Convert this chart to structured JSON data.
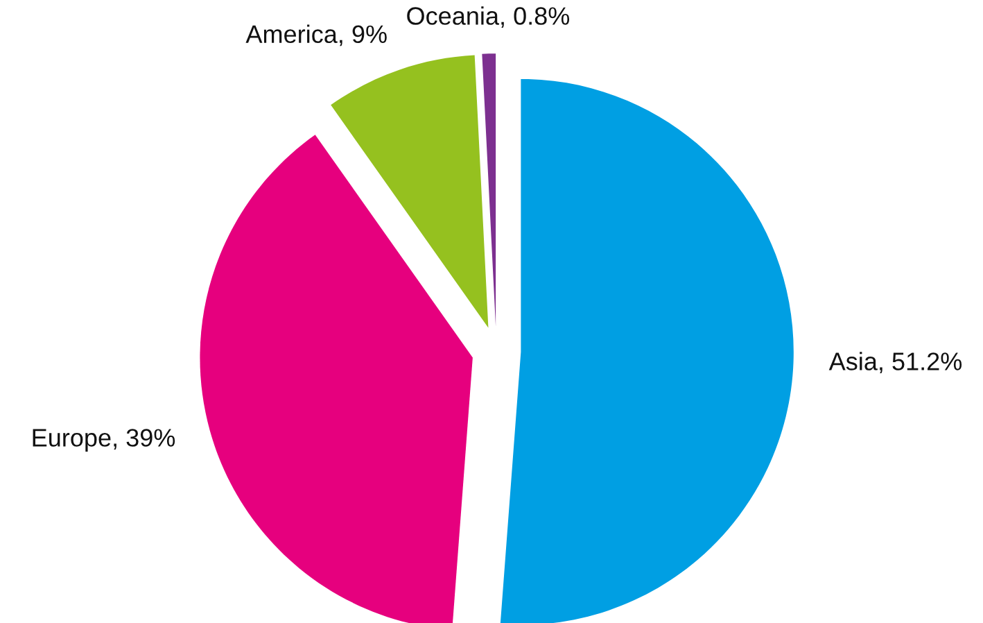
{
  "chart_data": {
    "type": "pie",
    "categories": [
      "Asia",
      "Europe",
      "America",
      "Oceania"
    ],
    "values": [
      51.2,
      39,
      9,
      0.8
    ],
    "value_labels": [
      "51.2%",
      "39%",
      "9%",
      "0.8%"
    ],
    "colors": [
      "#009fe3",
      "#e6007e",
      "#95c11f",
      "#7d3090"
    ]
  }
}
